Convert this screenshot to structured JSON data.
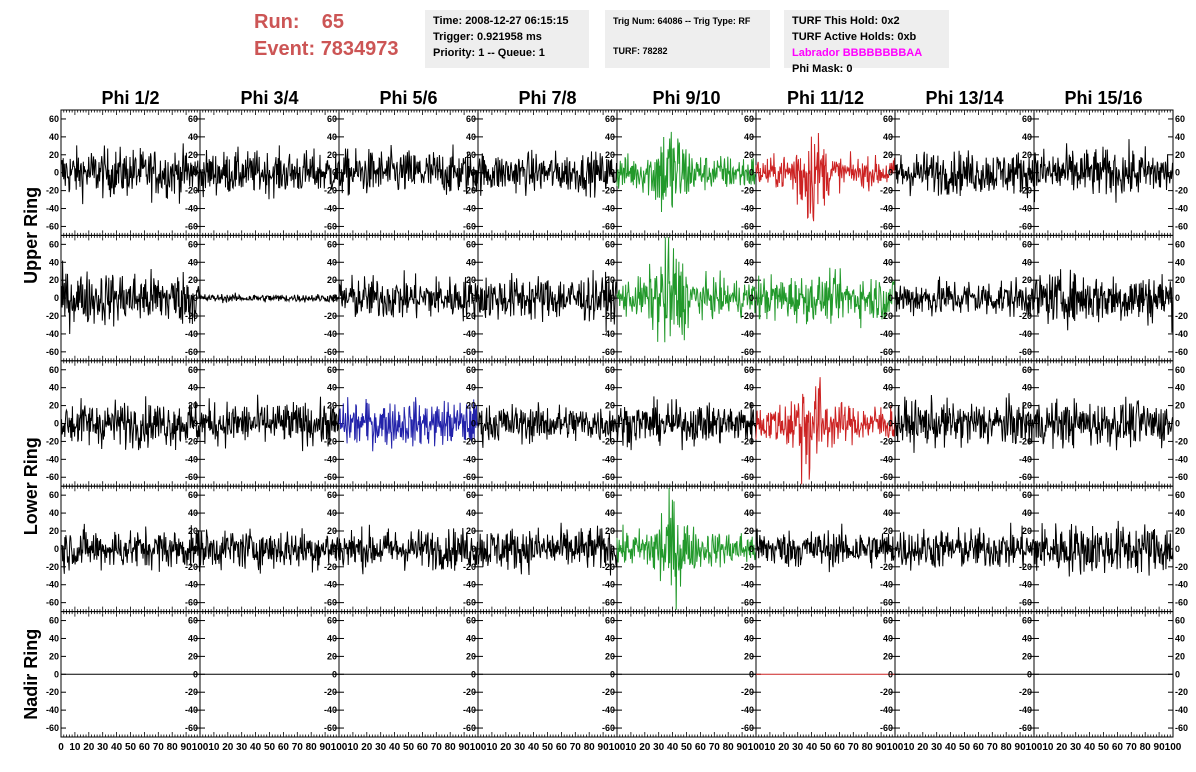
{
  "header": {
    "run_label": "Run:",
    "run_value": "65",
    "event_label": "Event:",
    "event_value": "7834973",
    "time": "Time: 2008-12-27 06:15:15",
    "trigger": "Trigger: 0.921958 ms",
    "priority": "Priority: 1 -- Queue: 1",
    "trig_num": "Trig Num: 64086 -- Trig Type: RF",
    "turf": "TURF: 78282",
    "turf_this_hold": "TURF This Hold: 0x2",
    "turf_active_holds": "TURF Active Holds: 0xb",
    "labrador": "Labrador BBBBBBBBAA",
    "phi_mask": "Phi Mask: 0"
  },
  "chart_data": {
    "type": "line",
    "columns": [
      "Phi 1/2",
      "Phi 3/4",
      "Phi 5/6",
      "Phi 7/8",
      "Phi 9/10",
      "Phi 11/12",
      "Phi 13/14",
      "Phi 15/16"
    ],
    "ring_labels": [
      {
        "label": "Upper Ring",
        "rows": [
          0,
          1
        ]
      },
      {
        "label": "Lower Ring",
        "rows": [
          2,
          3
        ]
      },
      {
        "label": "Nadir Ring",
        "rows": [
          4
        ]
      }
    ],
    "xlim": [
      0,
      100
    ],
    "ylim": [
      -70,
      70
    ],
    "x_ticks": [
      0,
      10,
      20,
      30,
      40,
      50,
      60,
      70,
      80,
      90,
      100
    ],
    "x_tick_labels": [
      "0",
      "10",
      "20",
      "30",
      "40",
      "50",
      "60",
      "70",
      "80",
      "90",
      "100"
    ],
    "y_ticks": [
      60,
      40,
      20,
      0,
      -20,
      -40,
      -60
    ],
    "y_tick_labels": [
      "60",
      "40",
      "20",
      "0",
      "-20",
      "-40",
      "-60"
    ],
    "colors": {
      "default": "#000000",
      "green": "#22992b",
      "red": "#cc2222",
      "blue": "#2222aa"
    },
    "panels": [
      [
        {
          "color": "default",
          "amplitude": 18,
          "burst": 0
        },
        {
          "color": "default",
          "amplitude": 16,
          "burst": 0
        },
        {
          "color": "default",
          "amplitude": 17,
          "burst": 0
        },
        {
          "color": "default",
          "amplitude": 15,
          "burst": 0
        },
        {
          "color": "green",
          "amplitude": 13,
          "burst": 28
        },
        {
          "color": "red",
          "amplitude": 11,
          "burst": 28
        },
        {
          "color": "default",
          "amplitude": 16,
          "burst": 0
        },
        {
          "color": "default",
          "amplitude": 18,
          "burst": 0
        }
      ],
      [
        {
          "color": "default",
          "amplitude": 20,
          "burst": 0
        },
        {
          "color": "default",
          "amplitude": 3,
          "burst": 0
        },
        {
          "color": "default",
          "amplitude": 16,
          "burst": 0
        },
        {
          "color": "default",
          "amplitude": 17,
          "burst": 0
        },
        {
          "color": "green",
          "amplitude": 14,
          "burst": 30
        },
        {
          "color": "green",
          "amplitude": 17,
          "burst": 0
        },
        {
          "color": "default",
          "amplitude": 14,
          "burst": 0
        },
        {
          "color": "default",
          "amplitude": 19,
          "burst": 0
        }
      ],
      [
        {
          "color": "default",
          "amplitude": 17,
          "burst": 0
        },
        {
          "color": "default",
          "amplitude": 16,
          "burst": 0
        },
        {
          "color": "blue",
          "amplitude": 17,
          "burst": 0
        },
        {
          "color": "default",
          "amplitude": 14,
          "burst": 0
        },
        {
          "color": "default",
          "amplitude": 15,
          "burst": 0
        },
        {
          "color": "red",
          "amplitude": 14,
          "burst": 30
        },
        {
          "color": "default",
          "amplitude": 17,
          "burst": 0
        },
        {
          "color": "default",
          "amplitude": 17,
          "burst": 0
        }
      ],
      [
        {
          "color": "default",
          "amplitude": 15,
          "burst": 0
        },
        {
          "color": "default",
          "amplitude": 15,
          "burst": 0
        },
        {
          "color": "default",
          "amplitude": 15,
          "burst": 0
        },
        {
          "color": "default",
          "amplitude": 16,
          "burst": 0
        },
        {
          "color": "green",
          "amplitude": 13,
          "burst": 28
        },
        {
          "color": "default",
          "amplitude": 14,
          "burst": 0
        },
        {
          "color": "default",
          "amplitude": 15,
          "burst": 0
        },
        {
          "color": "default",
          "amplitude": 19,
          "burst": 0
        }
      ],
      [
        {
          "color": "default",
          "amplitude": 0,
          "burst": 0
        },
        {
          "color": "default",
          "amplitude": 0,
          "burst": 0
        },
        {
          "color": "default",
          "amplitude": 0,
          "burst": 0
        },
        {
          "color": "default",
          "amplitude": 0,
          "burst": 0
        },
        {
          "color": "default",
          "amplitude": 0,
          "burst": 0
        },
        {
          "color": "red",
          "amplitude": 0,
          "burst": 0
        },
        {
          "color": "default",
          "amplitude": 0,
          "burst": 0
        },
        {
          "color": "default",
          "amplitude": 0,
          "burst": 0
        }
      ]
    ]
  }
}
